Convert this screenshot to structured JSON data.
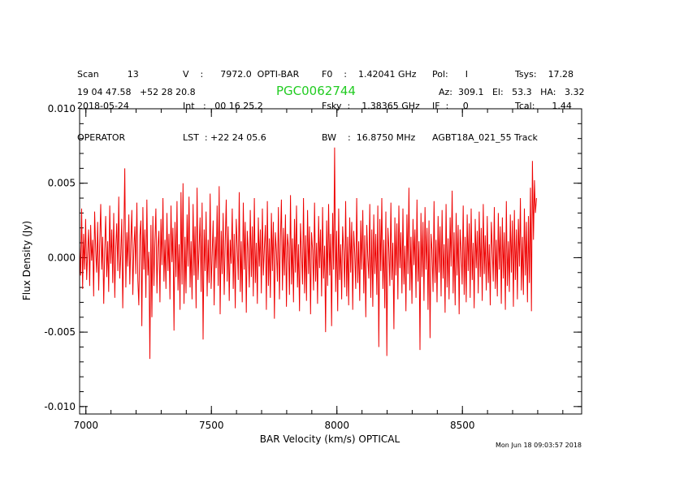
{
  "header": {
    "col1": [
      "Scan          13",
      "2018-05-24",
      "OPERATOR"
    ],
    "col2": [
      "V    :      7972.0  OPTI-BAR",
      "Int   :   00 16 25.2",
      "LST  : +22 24 05.6"
    ],
    "col3": [
      "F0    :    1.42041 GHz",
      "Fsky  :    1.38365 GHz",
      "BW    :  16.8750 MHz"
    ],
    "col4": [
      "Pol:      I",
      "IF  :     0",
      "AGBT18A_021_55 Track"
    ],
    "col5": [
      "Tsys:    17.28",
      "Tcal:      1.44"
    ],
    "coords": "19 04 47.58   +52 28 20.8",
    "source": "PGC0062744",
    "pointing": "Az:  309.1   El:   53.3   HA:   3.32",
    "timestamp": "Mon Jun 18 09:03:57 2018"
  },
  "colors": {
    "trace": "#ee0000",
    "axes": "#000000",
    "source_label": "#22cc22"
  },
  "chart_data": {
    "type": "line",
    "title": "",
    "xlabel": "BAR Velocity (km/s) OPTICAL",
    "ylabel": "Flux Density (Jy)",
    "xlim": [
      6975,
      8975
    ],
    "ylim": [
      -0.0105,
      0.01
    ],
    "xticks": [
      7000,
      7500,
      8000,
      8500
    ],
    "xtick_labels": [
      "7000",
      "7500",
      "8000",
      "8500"
    ],
    "yticks": [
      0.01,
      0.005,
      0.0,
      -0.005,
      -0.01
    ],
    "ytick_labels": [
      "0.010",
      "0.005",
      "0.000",
      "-0.005",
      "-0.010"
    ],
    "grid": false,
    "series": [
      {
        "x_start": 6975,
        "x_step": 4,
        "values": [
          0.0008,
          -0.0012,
          0.0033,
          -0.0021,
          0.0016,
          -0.0008,
          0.0026,
          -0.0015,
          0.0004,
          0.0019,
          -0.0019,
          0.0022,
          -0.0002,
          0.0012,
          -0.0026,
          0.0031,
          0.0005,
          -0.001,
          0.0024,
          -0.0022,
          0.0009,
          0.0036,
          -0.0008,
          0.0014,
          -0.0031,
          0.0006,
          0.0028,
          -0.0013,
          0.0011,
          -0.0023,
          0.0035,
          -0.0004,
          0.0019,
          -0.0017,
          0.003,
          -0.0027,
          0.0007,
          0.0023,
          -0.0009,
          0.0041,
          -0.0014,
          0.0002,
          0.0026,
          -0.0034,
          0.0013,
          0.006,
          -0.002,
          0.0017,
          -0.0006,
          0.0029,
          -0.0018,
          0.001,
          0.0032,
          -0.0025,
          0.0005,
          0.0021,
          -0.0011,
          0.0037,
          -0.0015,
          -0.0032,
          0.0015,
          0.0025,
          -0.0046,
          0.0034,
          -0.0008,
          0.0019,
          -0.0027,
          0.0039,
          -0.0012,
          0.0004,
          -0.0068,
          0.0022,
          -0.004,
          0.0028,
          -0.0019,
          0.0011,
          0.0033,
          -0.0024,
          0.0007,
          0.0018,
          -0.003,
          0.0026,
          -0.0005,
          0.004,
          -0.0016,
          0.0012,
          -0.0021,
          0.003,
          -0.0009,
          0.0016,
          -0.0028,
          0.0035,
          -0.0003,
          0.002,
          -0.0049,
          0.0024,
          -0.0013,
          0.0038,
          -0.0022,
          0.0009,
          -0.0035,
          0.0044,
          -0.0018,
          0.005,
          -0.0031,
          0.0014,
          -0.0024,
          0.0029,
          -0.0006,
          0.0041,
          -0.002,
          0.0011,
          -0.0028,
          0.0036,
          -0.0012,
          0.0021,
          -0.0034,
          0.0047,
          -0.0015,
          0.0006,
          0.0027,
          -0.0023,
          0.0037,
          -0.0055,
          0.0019,
          -0.0009,
          0.0031,
          -0.0026,
          0.0012,
          -0.0017,
          0.0043,
          -0.0021,
          0.0003,
          0.0025,
          -0.0032,
          0.0014,
          -0.0007,
          0.0035,
          -0.0019,
          0.0048,
          -0.0038,
          0.0018,
          -0.0011,
          0.003,
          -0.0025,
          0.0009,
          0.0039,
          -0.0016,
          0.0021,
          -0.0029,
          0.0012,
          -0.0004,
          0.0033,
          -0.0021,
          0.0016,
          -0.0034,
          0.0026,
          0.0007,
          -0.0015,
          0.0044,
          -0.0023,
          0.0011,
          -0.003,
          0.0037,
          -0.0008,
          0.0024,
          -0.0037,
          0.0018,
          0.0005,
          -0.002,
          0.0032,
          -0.0013,
          0.0021,
          -0.0026,
          0.004,
          -0.0017,
          0.001,
          -0.0031,
          0.0027,
          -0.0006,
          0.0019,
          -0.0024,
          0.0033,
          -0.0012,
          0.0006,
          0.0022,
          -0.0035,
          0.0038,
          -0.0019,
          0.0013,
          -0.0027,
          0.003,
          -0.0009,
          0.0024,
          -0.0041,
          0.0017,
          0.0004,
          -0.0016,
          0.0034,
          -0.0028,
          0.0012,
          0.0039,
          -0.0022,
          0.002,
          -0.0012,
          0.0029,
          -0.0033,
          0.0016,
          0.0007,
          -0.0025,
          0.0042,
          -0.0018,
          0.0013,
          -0.003,
          0.0026,
          -0.001,
          0.0035,
          -0.002,
          0.0009,
          -0.0036,
          0.0023,
          0.0002,
          -0.0018,
          0.004,
          -0.0024,
          0.0015,
          -0.0029,
          0.0032,
          -0.0011,
          0.0021,
          -0.0038,
          0.0017,
          0.0005,
          -0.0022,
          0.0037,
          -0.0016,
          0.001,
          -0.0031,
          0.0028,
          -0.0007,
          0.0019,
          -0.0026,
          0.0034,
          -0.0014,
          0.0008,
          -0.005,
          0.0025,
          -0.0019,
          0.0036,
          -0.0012,
          0.0016,
          -0.0046,
          0.003,
          -0.0008,
          0.0074,
          -0.0023,
          0.0018,
          -0.0036,
          0.0033,
          -0.0015,
          0.0009,
          -0.0028,
          0.0021,
          0.0004,
          -0.002,
          0.0038,
          -0.0026,
          0.0014,
          -0.0032,
          0.0027,
          -0.001,
          0.0024,
          -0.0035,
          0.0018,
          0.0003,
          -0.0021,
          0.004,
          -0.0017,
          0.0011,
          -0.0029,
          0.0025,
          -0.0008,
          0.0032,
          -0.0024,
          0.0015,
          -0.004,
          0.0022,
          0.0001,
          -0.0014,
          0.0036,
          -0.0027,
          0.0019,
          -0.0033,
          0.0029,
          -0.0011,
          0.0016,
          -0.0025,
          0.0035,
          -0.006,
          0.0026,
          -0.0009,
          0.004,
          -0.0021,
          0.0012,
          -0.0034,
          0.0031,
          -0.0066,
          0.002,
          0.0006,
          -0.0019,
          0.0037,
          -0.0015,
          0.001,
          -0.0048,
          0.0027,
          -0.0012,
          0.0023,
          -0.0028,
          0.0035,
          -0.0007,
          0.0017,
          -0.0024,
          0.0033,
          -0.0018,
          0.0008,
          -0.0036,
          0.0029,
          -0.0011,
          0.0047,
          -0.0022,
          0.0014,
          -0.0031,
          0.0026,
          -0.0005,
          0.0019,
          -0.0027,
          0.0039,
          -0.0016,
          0.0011,
          -0.0062,
          0.003,
          -0.0013,
          0.0024,
          -0.0029,
          0.0034,
          -0.0008,
          0.002,
          -0.0035,
          0.0025,
          -0.0054,
          0.0016,
          0.0005,
          -0.0023,
          0.0038,
          -0.0017,
          0.0012,
          -0.003,
          0.0028,
          -0.001,
          0.0021,
          -0.0026,
          0.0032,
          -0.0014,
          0.0009,
          -0.0037,
          0.0036,
          -0.002,
          0.0013,
          -0.0028,
          0.0027,
          -0.0006,
          0.0045,
          -0.0024,
          0.0017,
          -0.0032,
          0.003,
          -0.0012,
          0.0022,
          -0.0038,
          0.0019,
          0.0004,
          -0.0018,
          0.0035,
          -0.0025,
          0.0014,
          -0.003,
          0.0029,
          -0.0009,
          0.0023,
          -0.0027,
          0.0033,
          -0.0015,
          0.001,
          -0.0034,
          0.0026,
          -0.0007,
          0.0018,
          -0.0024,
          0.0031,
          -0.0013,
          0.002,
          -0.0029,
          0.0036,
          -0.0011,
          0.0015,
          -0.0022,
          0.0028,
          -0.0017,
          0.0009,
          -0.0032,
          0.0024,
          0.0006,
          -0.0016,
          0.0034,
          -0.0021,
          0.0012,
          -0.0026,
          0.003,
          -0.0008,
          0.0021,
          -0.0031,
          0.0027,
          -0.0014,
          0.0017,
          -0.0035,
          0.0038,
          -0.0019,
          0.0011,
          -0.0023,
          0.0029,
          -0.001,
          0.0025,
          -0.0033,
          0.0032,
          -0.0015,
          0.0019,
          -0.0028,
          0.0026,
          -0.0006,
          0.004,
          -0.0022,
          0.0014,
          -0.0025,
          0.0033,
          -0.0012,
          0.0024,
          -0.003,
          0.0028,
          -0.0017,
          0.0047,
          -0.0036,
          0.0065,
          0.0012,
          0.0052,
          0.003,
          0.004
        ]
      }
    ]
  }
}
